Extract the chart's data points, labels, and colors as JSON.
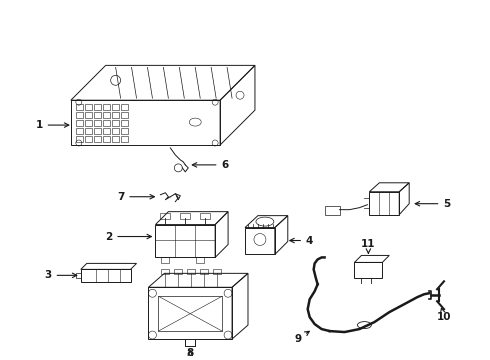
{
  "bg_color": "#ffffff",
  "line_color": "#1a1a1a",
  "fig_width": 4.9,
  "fig_height": 3.6,
  "dpi": 100,
  "label_fontsize": 7.5,
  "lw": 0.7
}
